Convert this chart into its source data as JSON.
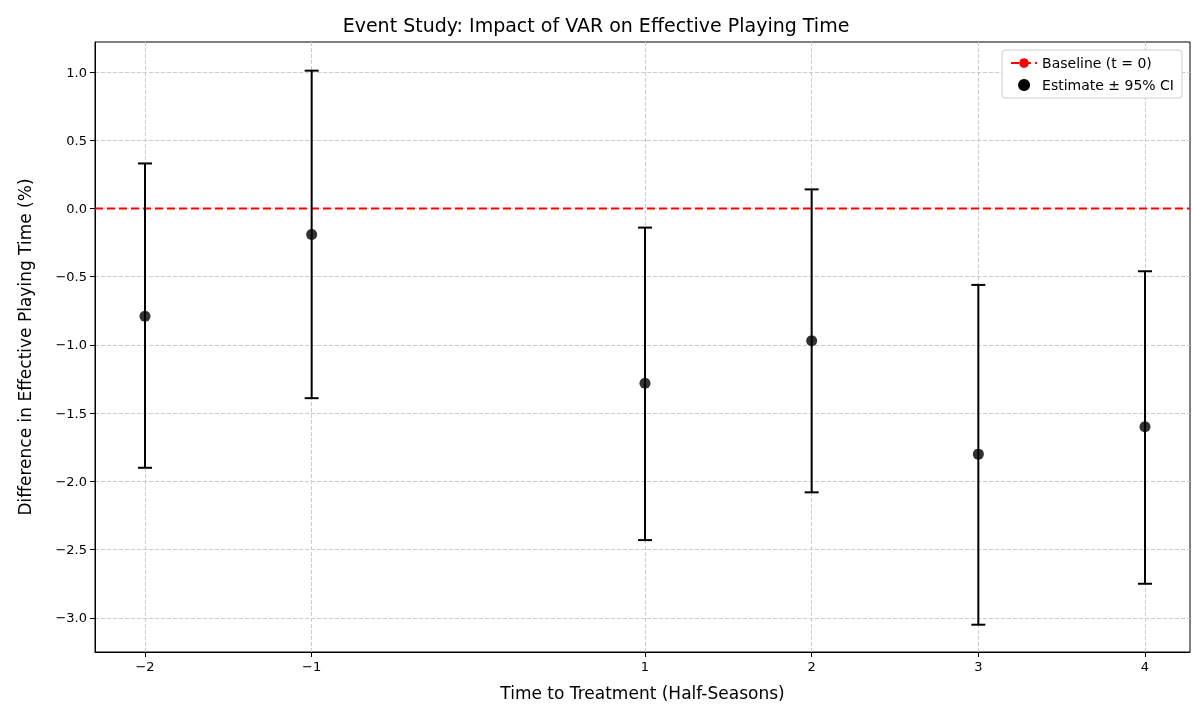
{
  "chart_data": {
    "type": "scatter",
    "title": "Event Study: Impact of VAR on Effective Playing Time",
    "xlabel": "Time to Treatment (Half-Seasons)",
    "ylabel": "Difference in Effective Playing Time (%)",
    "x": [
      -2,
      -1,
      1,
      2,
      3,
      4
    ],
    "series": [
      {
        "name": "Estimate ± 95% CI",
        "color": "#000000",
        "values": [
          -0.79,
          -0.19,
          -1.28,
          -0.97,
          -1.8,
          -1.6
        ],
        "errors": [
          [
            -1.9,
            0.33
          ],
          [
            -1.39,
            1.01
          ],
          [
            -2.43,
            -0.14
          ],
          [
            -2.08,
            0.14
          ],
          [
            -3.05,
            -0.56
          ],
          [
            -2.75,
            -0.46
          ]
        ]
      }
    ],
    "xlim": [
      -2.3,
      4.27
    ],
    "ylim": [
      -3.25,
      1.22
    ],
    "xticks": [
      {
        "value": -2,
        "label": "−2"
      },
      {
        "value": -1,
        "label": "−1"
      },
      1,
      2,
      3,
      4
    ],
    "yticks": [
      {
        "value": -3,
        "label": "−3.0"
      },
      {
        "value": -2.5,
        "label": "−2.5"
      },
      {
        "value": -2,
        "label": "−2.0"
      },
      {
        "value": -1.5,
        "label": "−1.5"
      },
      {
        "value": -1,
        "label": "−1.0"
      },
      {
        "value": -0.5,
        "label": "−0.5"
      },
      {
        "value": 0,
        "label": "0.0"
      },
      {
        "value": 0.5,
        "label": "0.5"
      },
      {
        "value": 1,
        "label": "1.0"
      }
    ],
    "ref_lines": [
      {
        "axis": "y",
        "value": 0,
        "label": "Baseline (t = 0)",
        "color": "#ff0000",
        "line_style": "dashed"
      }
    ],
    "grid": true,
    "legend": "top right",
    "marker": "circle"
  }
}
